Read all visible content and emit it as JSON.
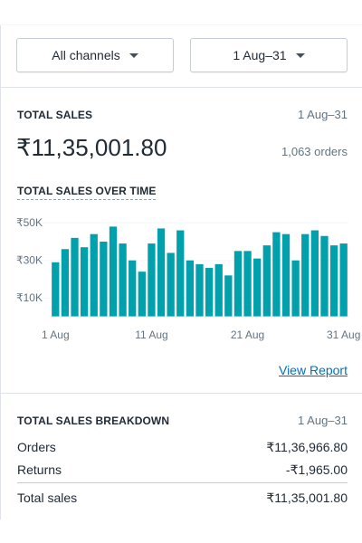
{
  "filters": {
    "channel": "All channels",
    "date_range": "1 Aug–31"
  },
  "total_sales": {
    "label": "TOTAL SALES",
    "date_range": "1 Aug–31",
    "amount": "₹11,35,001.80",
    "orders": "1,063 orders"
  },
  "over_time": {
    "label": "TOTAL SALES OVER TIME",
    "view_report": "View Report"
  },
  "chart_data": {
    "type": "bar",
    "color": "#00a0ac",
    "y_ticks": [
      {
        "value": 10000,
        "label": "₹10K"
      },
      {
        "value": 30000,
        "label": "₹30K"
      },
      {
        "value": 50000,
        "label": "₹50K"
      }
    ],
    "ylim": [
      0,
      53000
    ],
    "x_ticks": [
      {
        "index": 0,
        "label": "1 Aug"
      },
      {
        "index": 10,
        "label": "11 Aug"
      },
      {
        "index": 20,
        "label": "21 Aug"
      },
      {
        "index": 30,
        "label": "31 Aug"
      }
    ],
    "categories": [
      "1 Aug",
      "2 Aug",
      "3 Aug",
      "4 Aug",
      "5 Aug",
      "6 Aug",
      "7 Aug",
      "8 Aug",
      "9 Aug",
      "10 Aug",
      "11 Aug",
      "12 Aug",
      "13 Aug",
      "14 Aug",
      "15 Aug",
      "16 Aug",
      "17 Aug",
      "18 Aug",
      "19 Aug",
      "20 Aug",
      "21 Aug",
      "22 Aug",
      "23 Aug",
      "24 Aug",
      "25 Aug",
      "26 Aug",
      "27 Aug",
      "28 Aug",
      "29 Aug",
      "30 Aug",
      "31 Aug"
    ],
    "values": [
      29000,
      36000,
      42000,
      37000,
      44000,
      40000,
      48000,
      39000,
      30000,
      24000,
      39000,
      47000,
      34000,
      46000,
      30000,
      28000,
      26000,
      28000,
      22000,
      35000,
      35000,
      31000,
      38000,
      45000,
      44000,
      30000,
      44000,
      46000,
      43000,
      38000,
      39000
    ]
  },
  "breakdown": {
    "label": "TOTAL SALES BREAKDOWN",
    "date_range": "1 Aug–31",
    "rows": [
      {
        "label": "Orders",
        "value": "₹11,36,966.80"
      },
      {
        "label": "Returns",
        "value": "-₹1,965.00"
      }
    ],
    "total": {
      "label": "Total sales",
      "value": "₹11,35,001.80"
    }
  }
}
